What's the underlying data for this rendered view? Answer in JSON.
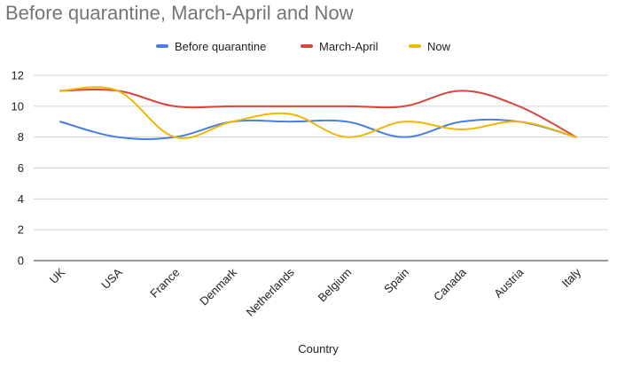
{
  "chart_data": {
    "type": "line",
    "title": "Before quarantine, March-April and Now",
    "xlabel": "Country",
    "ylabel": "",
    "categories": [
      "UK",
      "USA",
      "France",
      "Denmark",
      "Netherlands",
      "Belgium",
      "Spain",
      "Canada",
      "Austria",
      "Italy"
    ],
    "ylim": [
      0,
      12
    ],
    "yticks": [
      0,
      2,
      4,
      6,
      8,
      10,
      12
    ],
    "grid": true,
    "legend_position": "top",
    "smooth": true,
    "series": [
      {
        "name": "Before quarantine",
        "color": "#4A7FE0",
        "values": [
          9,
          8,
          8,
          9,
          9,
          9,
          8,
          9,
          9,
          8
        ]
      },
      {
        "name": "March-April",
        "color": "#D9443B",
        "values": [
          11,
          11,
          10,
          10,
          10,
          10,
          10,
          11,
          10,
          8
        ]
      },
      {
        "name": "Now",
        "color": "#F2B705",
        "values": [
          11,
          11,
          8,
          9,
          9.5,
          8,
          9,
          8.5,
          9,
          8
        ]
      }
    ]
  }
}
